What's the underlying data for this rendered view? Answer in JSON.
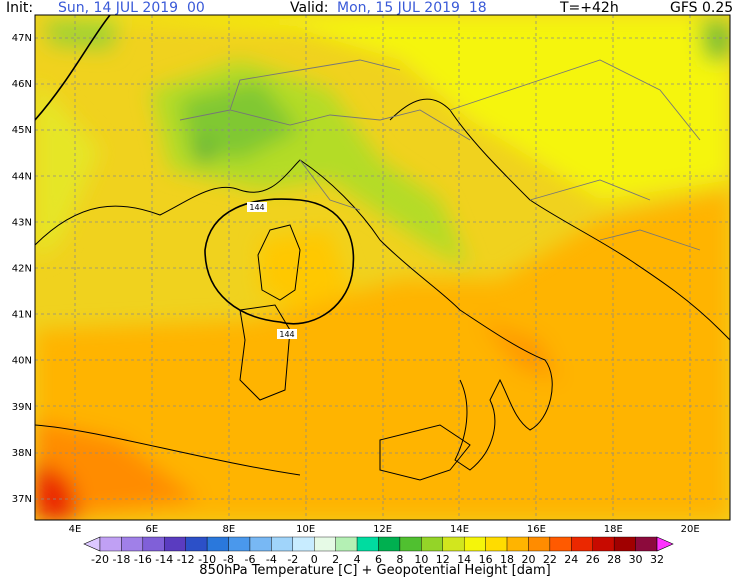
{
  "header": {
    "init_label": "Init:",
    "init_value": "Sun, 14 JUL 2019  00",
    "valid_label": "Valid:",
    "valid_value": "Mon, 15 JUL 2019  18",
    "lead": "T=+42h",
    "model": "GFS 0.25"
  },
  "lat_labels": [
    "47N",
    "46N",
    "45N",
    "44N",
    "43N",
    "42N",
    "41N",
    "40N",
    "39N",
    "38N",
    "37N"
  ],
  "lon_labels": [
    "4E",
    "6E",
    "8E",
    "10E",
    "12E",
    "14E",
    "16E",
    "18E",
    "20E"
  ],
  "contour_labels": [
    "144",
    "144"
  ],
  "colorbar": {
    "labels": [
      "-20",
      "-18",
      "-16",
      "-14",
      "-12",
      "-10",
      "-8",
      "-6",
      "-4",
      "-2",
      "0",
      "2",
      "4",
      "6",
      "8",
      "10",
      "12",
      "14",
      "16",
      "18",
      "20",
      "22",
      "24",
      "26",
      "28",
      "30",
      "32"
    ],
    "colors": [
      "#dcc8ff",
      "#c0a0f4",
      "#a080e8",
      "#8060d8",
      "#5a3cc0",
      "#2c50c8",
      "#2a78dc",
      "#4a98ec",
      "#78b8f4",
      "#a0d4fa",
      "#c8ecff",
      "#e6fae6",
      "#b4f0b4",
      "#00dca0",
      "#00b050",
      "#50c030",
      "#94d428",
      "#d2e61e",
      "#f5f50a",
      "#ffdc00",
      "#ffb400",
      "#ff8c00",
      "#ff5a00",
      "#eb2800",
      "#c80a00",
      "#a00000",
      "#8c0a3c",
      "#c800a0",
      "#ff32ff"
    ]
  },
  "footer": {
    "title": "850hPa Temperature [C] + Geopotential Height [dam]"
  }
}
